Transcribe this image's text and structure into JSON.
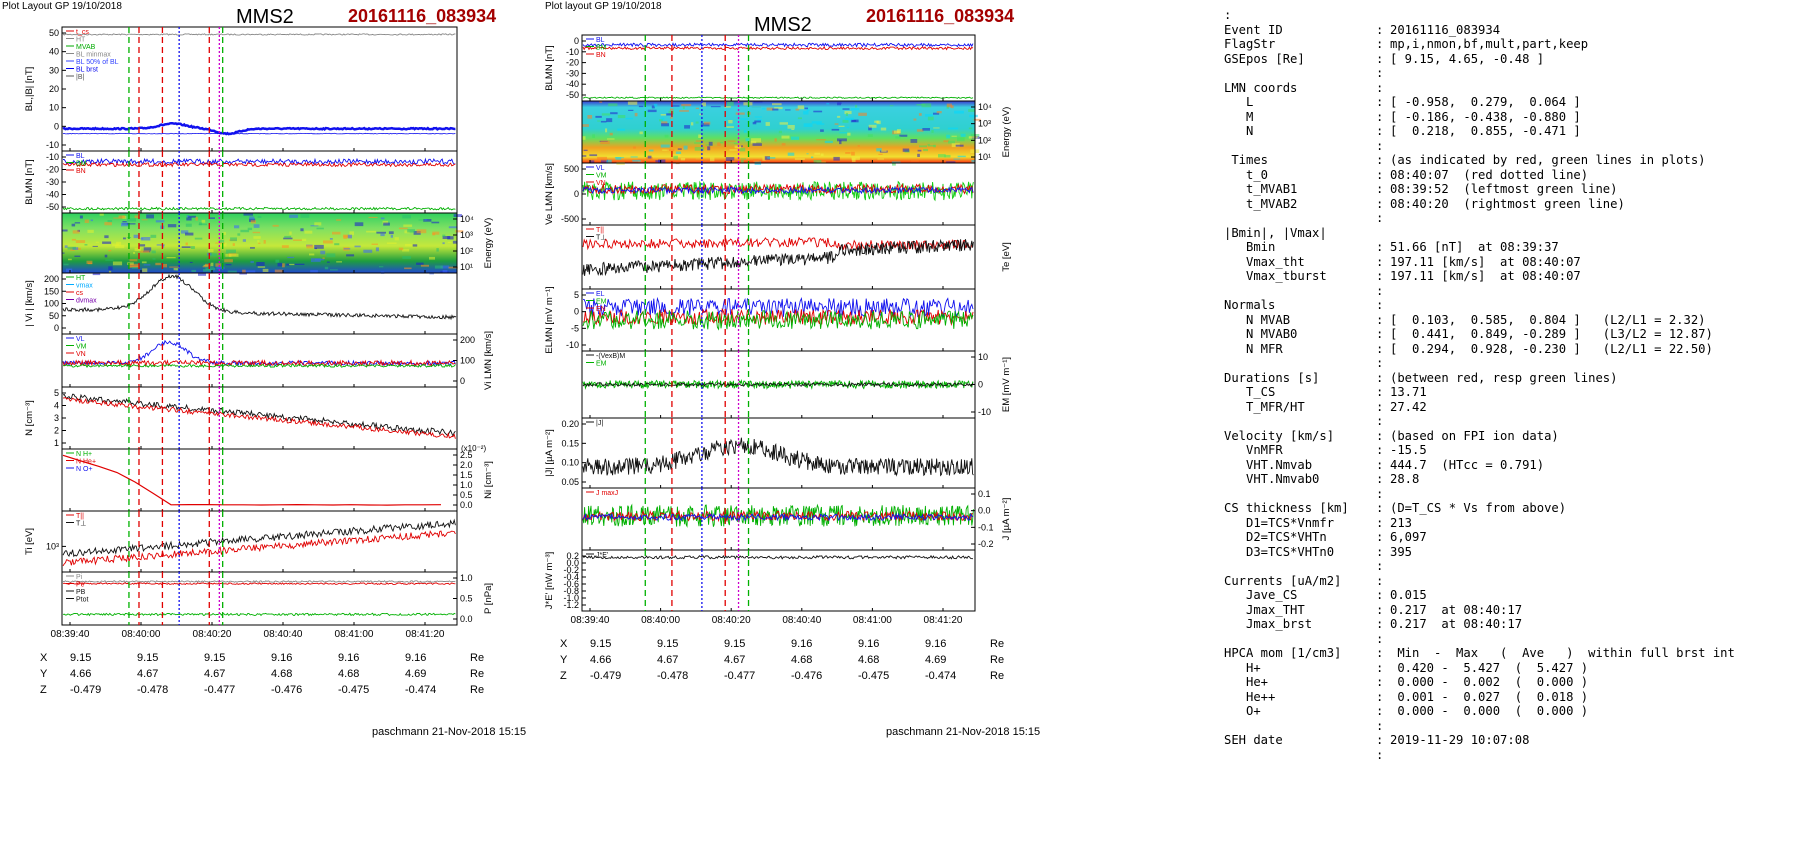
{
  "left": {
    "header": {
      "plot_layout": "Plot Layout GP 19/10/2018",
      "spacecraft": "MMS2",
      "event": "20161116_083934"
    },
    "x_ticks": [
      "08:39:40",
      "08:40:00",
      "08:40:20",
      "08:40:40",
      "08:41:00",
      "08:41:20"
    ],
    "coords": {
      "X": [
        "9.15",
        "9.15",
        "9.15",
        "9.16",
        "9.16",
        "9.16"
      ],
      "Y": [
        "4.66",
        "4.67",
        "4.67",
        "4.68",
        "4.68",
        "4.69"
      ],
      "Z": [
        "-0.479",
        "-0.478",
        "-0.477",
        "-0.476",
        "-0.475",
        "-0.474"
      ],
      "unit": "Re"
    },
    "footer": "paschmann 21-Nov-2018 15:15",
    "panels": [
      {
        "ylabel": "BL,|B| [nT]",
        "yticks": [
          "50",
          "40",
          "30",
          "20",
          "10",
          "0",
          "-10"
        ],
        "legend": [
          "t_cs",
          "HT",
          "MVAB",
          "BL minmax",
          "BL 50% of BL",
          "BL brst",
          "|B|"
        ],
        "legend_colors": [
          "#e00000",
          "#888888",
          "#00aa00",
          "#888888",
          "#3344ff",
          "#0000ee",
          "#555555"
        ]
      },
      {
        "ylabel": "BLMN [nT]",
        "yticks": [
          "-10",
          "-20",
          "-30",
          "-40",
          "-50"
        ],
        "legend": [
          "BL",
          "BM",
          "BN"
        ]
      },
      {
        "ylabel_right": "Energy (eV)",
        "yticks_right": [
          "10^4",
          "10^3",
          "10^2",
          "10^1"
        ]
      },
      {
        "ylabel": "| Vi | [km/s]",
        "yticks": [
          "200",
          "150",
          "100",
          "50",
          "0"
        ],
        "legend": [
          "HT",
          "vmax",
          "cs",
          "dvmax"
        ]
      },
      {
        "ylabel_right": "Vi LMN [km/s]",
        "yticks_right": [
          "200",
          "100",
          "0"
        ],
        "legend": [
          "VL",
          "VM",
          "VN"
        ]
      },
      {
        "ylabel": "N [cm^-3]",
        "yticks": [
          "5",
          "4",
          "3",
          "2",
          "1"
        ]
      },
      {
        "ylabel_right": "Ni [cm^-3]",
        "yticks_right": [
          "2.5",
          "2.0",
          "1.5",
          "1.0",
          "0.5",
          "0.0"
        ],
        "scale": "(x10^-2)",
        "legend": [
          "N H+",
          "N He+",
          "N O+"
        ]
      },
      {
        "ylabel": "Ti [eV]",
        "yticks": [
          "10^3"
        ],
        "legend": [
          "T||",
          "T⊥"
        ]
      },
      {
        "ylabel_right": "P [nPa]",
        "yticks_right": [
          "1.0",
          "0.5",
          "0.0"
        ],
        "legend": [
          "Pi",
          "Pe",
          "PB",
          "Ptot"
        ]
      }
    ]
  },
  "middle": {
    "header": {
      "plot_layout": "Plot layout GP 19/10/2018",
      "spacecraft": "MMS2",
      "event": "20161116_083934"
    },
    "x_ticks": [
      "08:39:40",
      "08:40:00",
      "08:40:20",
      "08:40:40",
      "08:41:00",
      "08:41:20"
    ],
    "coords": {
      "X": [
        "9.15",
        "9.15",
        "9.15",
        "9.16",
        "9.16",
        "9.16"
      ],
      "Y": [
        "4.66",
        "4.67",
        "4.67",
        "4.68",
        "4.68",
        "4.69"
      ],
      "Z": [
        "-0.479",
        "-0.478",
        "-0.477",
        "-0.476",
        "-0.475",
        "-0.474"
      ],
      "unit": "Re"
    },
    "footer": "paschmann 21-Nov-2018 15:15",
    "panels": [
      {
        "ylabel": "BLMN [nT]",
        "yticks": [
          "0",
          "-10",
          "-20",
          "-30",
          "-40",
          "-50"
        ],
        "legend": [
          "BL",
          "BM",
          "BN"
        ]
      },
      {
        "ylabel_right": "Energy (eV)",
        "yticks_right": [
          "10^4",
          "10^3",
          "10^2",
          "10^1"
        ]
      },
      {
        "ylabel": "Ve LMN [km/s]",
        "yticks": [
          "500",
          "0",
          "-500"
        ],
        "legend": [
          "VL",
          "VM",
          "VN"
        ]
      },
      {
        "ylabel_right": "Te [eV]",
        "legend": [
          "T||",
          "T⊥"
        ]
      },
      {
        "ylabel": "ELMN [mV m^-1]",
        "yticks": [
          "5",
          "0",
          "-5",
          "-10"
        ],
        "legend": [
          "EL",
          "EM",
          "EN"
        ]
      },
      {
        "ylabel_right": "EM [mV m^-1]",
        "yticks_right": [
          "10",
          "0",
          "-10"
        ],
        "legend": [
          "-(VexB)M",
          "EM"
        ]
      },
      {
        "ylabel": "|J| [µA m^-2]",
        "yticks": [
          "0.20",
          "0.15",
          "0.10",
          "0.05"
        ],
        "legend": [
          "|J|"
        ]
      },
      {
        "ylabel_right": "J [µA m^-2]",
        "yticks_right": [
          "0.1",
          "0.0",
          "-0.1",
          "-0.2"
        ],
        "legend": [
          "J maxJ"
        ]
      },
      {
        "ylabel": "J*E' [nW m^-3]",
        "yticks": [
          "0.2",
          "0.0",
          "-0.2",
          "-0.4",
          "-0.6",
          "-0.8",
          "-1.0",
          "-1.2"
        ],
        "legend": [
          "J*E'"
        ]
      }
    ]
  },
  "info": [
    {
      "k": ":",
      "s": "",
      "v": ""
    },
    {
      "k": "Event ID",
      "s": ":",
      "v": "20161116_083934"
    },
    {
      "k": "FlagStr",
      "s": ":",
      "v": "mp,i,nmon,bf,mult,part,keep"
    },
    {
      "k": "GSEpos [Re]",
      "s": ":",
      "v": "[ 9.15, 4.65, -0.48 ]"
    },
    {
      "k": "",
      "s": ":",
      "v": ""
    },
    {
      "k": "LMN coords",
      "s": ":",
      "v": ""
    },
    {
      "k": "   L",
      "s": ":",
      "v": "[ -0.958,  0.279,  0.064 ]"
    },
    {
      "k": "   M",
      "s": ":",
      "v": "[ -0.186, -0.438, -0.880 ]"
    },
    {
      "k": "   N",
      "s": ":",
      "v": "[  0.218,  0.855, -0.471 ]"
    },
    {
      "k": "",
      "s": ":",
      "v": ""
    },
    {
      "k": " Times",
      "s": ":",
      "v": "(as indicated by red, green lines in plots)"
    },
    {
      "k": "   t_0",
      "s": ":",
      "v": "08:40:07  (red dotted line)"
    },
    {
      "k": "   t_MVAB1",
      "s": ":",
      "v": "08:39:52  (leftmost green line)"
    },
    {
      "k": "   t_MVAB2",
      "s": ":",
      "v": "08:40:20  (rightmost green line)"
    },
    {
      "k": "",
      "s": ":",
      "v": ""
    },
    {
      "k": "|Bmin|, |Vmax|",
      "s": "",
      "v": ""
    },
    {
      "k": "   Bmin",
      "s": ":",
      "v": "51.66 [nT]  at 08:39:37"
    },
    {
      "k": "   Vmax_tht",
      "s": ":",
      "v": "197.11 [km/s]  at 08:40:07"
    },
    {
      "k": "   Vmax_tburst",
      "s": ":",
      "v": "197.11 [km/s]  at 08:40:07"
    },
    {
      "k": "",
      "s": ":",
      "v": ""
    },
    {
      "k": "Normals",
      "s": ":",
      "v": ""
    },
    {
      "k": "   N MVAB",
      "s": ":",
      "v": "[  0.103,  0.585,  0.804 ]   (L2/L1 = 2.32)"
    },
    {
      "k": "   N MVAB0",
      "s": ":",
      "v": "[  0.441,  0.849, -0.289 ]   (L3/L2 = 12.87)"
    },
    {
      "k": "   N MFR",
      "s": ":",
      "v": "[  0.294,  0.928, -0.230 ]   (L2/L1 = 22.50)"
    },
    {
      "k": "",
      "s": ":",
      "v": ""
    },
    {
      "k": "Durations [s]",
      "s": ":",
      "v": "(between red, resp green lines)"
    },
    {
      "k": "   T_CS",
      "s": ":",
      "v": "13.71"
    },
    {
      "k": "   T_MFR/HT",
      "s": ":",
      "v": "27.42"
    },
    {
      "k": "",
      "s": ":",
      "v": ""
    },
    {
      "k": "Velocity [km/s]",
      "s": ":",
      "v": "(based on FPI ion data)"
    },
    {
      "k": "   VnMFR",
      "s": ":",
      "v": "-15.5"
    },
    {
      "k": "   VHT.Nmvab",
      "s": ":",
      "v": "444.7  (HTcc = 0.791)"
    },
    {
      "k": "   VHT.Nmvab0",
      "s": ":",
      "v": "28.8"
    },
    {
      "k": "",
      "s": ":",
      "v": ""
    },
    {
      "k": "CS thickness [km]",
      "s": ":",
      "v": "(D=T_CS * Vs from above)"
    },
    {
      "k": "   D1=TCS*Vnmfr",
      "s": ":",
      "v": "213"
    },
    {
      "k": "   D2=TCS*VHTn",
      "s": ":",
      "v": "6,097"
    },
    {
      "k": "   D3=TCS*VHTn0",
      "s": ":",
      "v": "395"
    },
    {
      "k": "",
      "s": ":",
      "v": ""
    },
    {
      "k": "Currents [uA/m2]",
      "s": ":",
      "v": ""
    },
    {
      "k": "   Jave_CS",
      "s": ":",
      "v": "0.015"
    },
    {
      "k": "   Jmax_THT",
      "s": ":",
      "v": "0.217  at 08:40:17"
    },
    {
      "k": "   Jmax_brst",
      "s": ":",
      "v": "0.217  at 08:40:17"
    },
    {
      "k": "",
      "s": ":",
      "v": ""
    },
    {
      "k": "HPCA mom [1/cm3]",
      "s": ":",
      "v": " Min  -  Max   (  Ave   )  within full brst int"
    },
    {
      "k": "   H+",
      "s": ":",
      "v": " 0.420 -  5.427  (  5.427 )"
    },
    {
      "k": "   He+",
      "s": ":",
      "v": " 0.000 -  0.002  (  0.000 )"
    },
    {
      "k": "   He++",
      "s": ":",
      "v": " 0.001 -  0.027  (  0.018 )"
    },
    {
      "k": "   O+",
      "s": ":",
      "v": " 0.000 -  0.000  (  0.000 )"
    },
    {
      "k": "",
      "s": ":",
      "v": ""
    },
    {
      "k": "SEH date",
      "s": ":",
      "v": "2019-11-29 10:07:08"
    },
    {
      "k": "",
      "s": ":",
      "v": ""
    }
  ],
  "chart_data": [
    {
      "type": "line",
      "title": "MMS2 20161116_083934",
      "x_ticks": [
        "08:39:40",
        "08:40:00",
        "08:40:20",
        "08:40:40",
        "08:41:00",
        "08:41:20"
      ],
      "markers": {
        "t_0": "08:40:07",
        "t_MVAB1": "08:39:52",
        "t_MVAB2": "08:40:20"
      },
      "ion_densities_Ni_x1e-2": {
        "H+": [
          2.2,
          2.0,
          1.3,
          0.6,
          0.3,
          0.3,
          0.2,
          0.1,
          0.2,
          0.1,
          0.1,
          0.0
        ],
        "x": [
          "08:39:32",
          "08:39:40",
          "08:39:50",
          "08:40:00",
          "08:40:05",
          "08:40:15",
          "08:40:30",
          "08:40:40",
          "08:40:50",
          "08:41:00",
          "08:41:20",
          "08:41:30"
        ]
      }
    }
  ]
}
